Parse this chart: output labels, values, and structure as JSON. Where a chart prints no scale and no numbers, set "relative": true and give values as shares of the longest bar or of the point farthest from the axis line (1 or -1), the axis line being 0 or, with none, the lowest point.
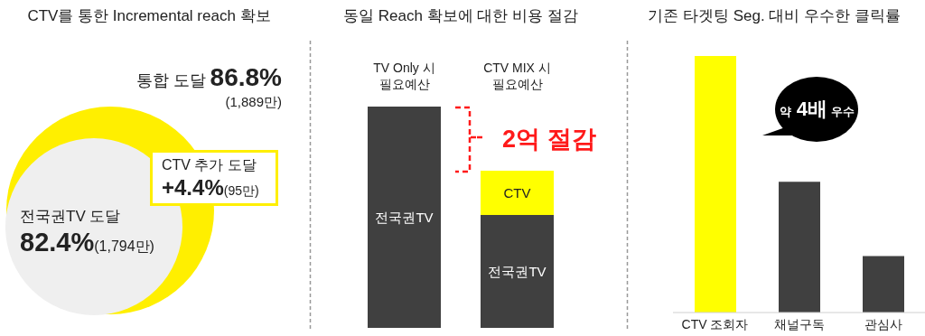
{
  "chart_data": [
    {
      "type": "other",
      "title": "CTV를 통한 Incremental reach 확보",
      "annotations": [
        "통합 도달",
        "86.8%",
        "(1,889만)",
        "CTV 추가 도달",
        "+4.4%",
        "(95만)",
        "전국권TV 도달",
        "82.4%",
        "(1,794만)"
      ]
    },
    {
      "type": "bar",
      "title": "동일 Reach 확보에 대한 비용 절감",
      "categories": [
        "TV Only 시\n필요예산",
        "CTV MIX 시\n필요예산"
      ],
      "stacked": true,
      "relative": true,
      "series": [
        {
          "name": "전국권TV",
          "color": "#404040",
          "values": [
            1,
            0.51
          ]
        },
        {
          "name": "CTV",
          "color": "#ffff00",
          "values": [
            null,
            0.2
          ]
        }
      ],
      "annotations": [
        "2억 절감"
      ]
    },
    {
      "type": "bar",
      "title": "기존 타겟팅 Seg. 대비 우수한 클릭률",
      "categories": [
        "CTV 조회자",
        "채널구독",
        "관심사"
      ],
      "series": [
        {
          "values": [
            1,
            0.51,
            0.22
          ],
          "colors": [
            "#ffff00",
            "#404040",
            "#404040"
          ]
        }
      ],
      "relative": true,
      "annotations": [
        "약 4배 우수"
      ]
    }
  ]
}
